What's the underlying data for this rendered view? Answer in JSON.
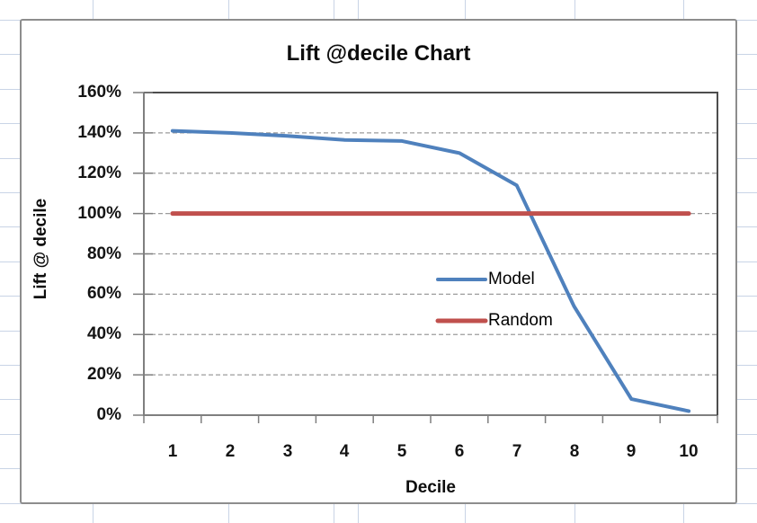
{
  "sheet": {
    "gridline_color": "#C9D4E6",
    "chart_frame_border_color": "#8D8D8D",
    "plot_border_color": "#4D4D4D",
    "axis_color": "#7F7F7F",
    "gridline_dash_color": "#9C9C9C"
  },
  "chart_data": {
    "type": "line",
    "title": "Lift @decile Chart",
    "xlabel": "Decile",
    "ylabel": "Lift @ decile",
    "categories": [
      "1",
      "2",
      "3",
      "4",
      "5",
      "6",
      "7",
      "8",
      "9",
      "10"
    ],
    "y_tick_labels": [
      "0%",
      "20%",
      "40%",
      "60%",
      "80%",
      "100%",
      "120%",
      "140%",
      "160%"
    ],
    "ylim_pct": [
      0,
      160
    ],
    "y_tick_step_pct": 20,
    "grid": "horizontal-dashed",
    "legend_position": "inside-plot-right",
    "series": [
      {
        "name": "Model",
        "color": "#4F81BD",
        "stroke_width": 4,
        "values_pct": [
          141,
          140,
          138.5,
          136.5,
          136,
          130,
          114,
          54,
          8,
          2
        ]
      },
      {
        "name": "Random",
        "color": "#C0504D",
        "stroke_width": 5,
        "values_pct": [
          100,
          100,
          100,
          100,
          100,
          100,
          100,
          100,
          100,
          100
        ]
      }
    ]
  }
}
